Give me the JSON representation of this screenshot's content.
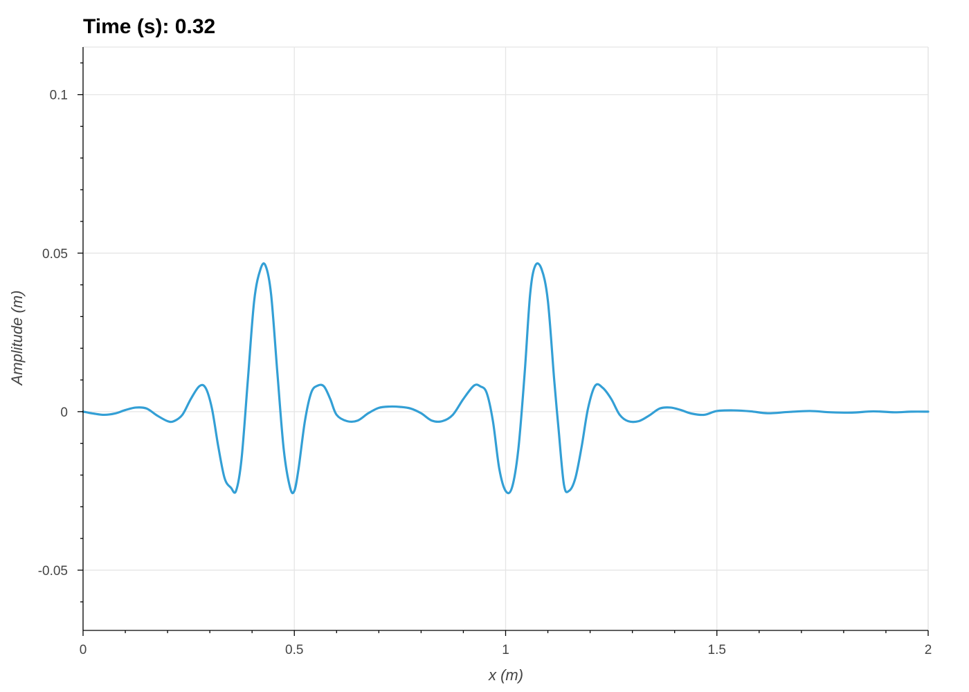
{
  "chart_data": {
    "type": "line",
    "title": "Time (s): 0.32",
    "xlabel": "x (m)",
    "ylabel": "Amplitude (m)",
    "xlim": [
      0,
      2
    ],
    "ylim": [
      -0.069,
      0.115
    ],
    "x_ticks": [
      0,
      0.5,
      1,
      1.5,
      2
    ],
    "x_tick_labels": [
      "0",
      "0.5",
      "1",
      "1.5",
      "2"
    ],
    "y_ticks": [
      -0.05,
      0,
      0.05,
      0.1
    ],
    "y_tick_labels": [
      "-0.05",
      "0",
      "0.05",
      "0.1"
    ],
    "grid": true,
    "series": [
      {
        "color": "#339fd5",
        "x": [
          0.0,
          0.025,
          0.05,
          0.075,
          0.1,
          0.125,
          0.15,
          0.175,
          0.2,
          0.215,
          0.235,
          0.255,
          0.275,
          0.29,
          0.305,
          0.32,
          0.335,
          0.35,
          0.362,
          0.375,
          0.39,
          0.405,
          0.42,
          0.432,
          0.445,
          0.46,
          0.475,
          0.49,
          0.5,
          0.51,
          0.525,
          0.54,
          0.555,
          0.57,
          0.585,
          0.6,
          0.625,
          0.65,
          0.675,
          0.7,
          0.725,
          0.75,
          0.775,
          0.8,
          0.825,
          0.85,
          0.875,
          0.9,
          0.925,
          0.94,
          0.955,
          0.97,
          0.985,
          1.0,
          1.015,
          1.03,
          1.045,
          1.058,
          1.07,
          1.085,
          1.1,
          1.115,
          1.125,
          1.138,
          1.15,
          1.165,
          1.18,
          1.195,
          1.212,
          1.23,
          1.25,
          1.27,
          1.29,
          1.315,
          1.34,
          1.365,
          1.39,
          1.415,
          1.44,
          1.47,
          1.5,
          1.54,
          1.58,
          1.62,
          1.67,
          1.72,
          1.77,
          1.82,
          1.87,
          1.92,
          1.96,
          2.0
        ],
        "values": [
          0.0,
          -0.0006,
          -0.001,
          -0.0006,
          0.0005,
          0.0013,
          0.001,
          -0.0012,
          -0.003,
          -0.003,
          -0.001,
          0.004,
          0.008,
          0.0075,
          0.001,
          -0.011,
          -0.021,
          -0.024,
          -0.025,
          -0.015,
          0.01,
          0.035,
          0.045,
          0.046,
          0.037,
          0.012,
          -0.012,
          -0.024,
          -0.025,
          -0.018,
          -0.003,
          0.006,
          0.0082,
          0.008,
          0.004,
          -0.001,
          -0.003,
          -0.0028,
          -0.0005,
          0.0012,
          0.0016,
          0.0015,
          0.001,
          -0.0005,
          -0.0028,
          -0.003,
          -0.001,
          0.004,
          0.0082,
          0.008,
          0.006,
          -0.003,
          -0.018,
          -0.025,
          -0.024,
          -0.012,
          0.012,
          0.037,
          0.046,
          0.045,
          0.035,
          0.01,
          -0.005,
          -0.023,
          -0.025,
          -0.021,
          -0.011,
          0.001,
          0.0082,
          0.0075,
          0.004,
          -0.001,
          -0.003,
          -0.003,
          -0.0012,
          0.001,
          0.0013,
          0.0005,
          -0.0006,
          -0.001,
          0.0002,
          0.0004,
          0.0001,
          -0.0005,
          -0.0001,
          0.0002,
          -0.0002,
          -0.0003,
          0.0001,
          -0.0002,
          0.0,
          0.0
        ]
      }
    ]
  }
}
